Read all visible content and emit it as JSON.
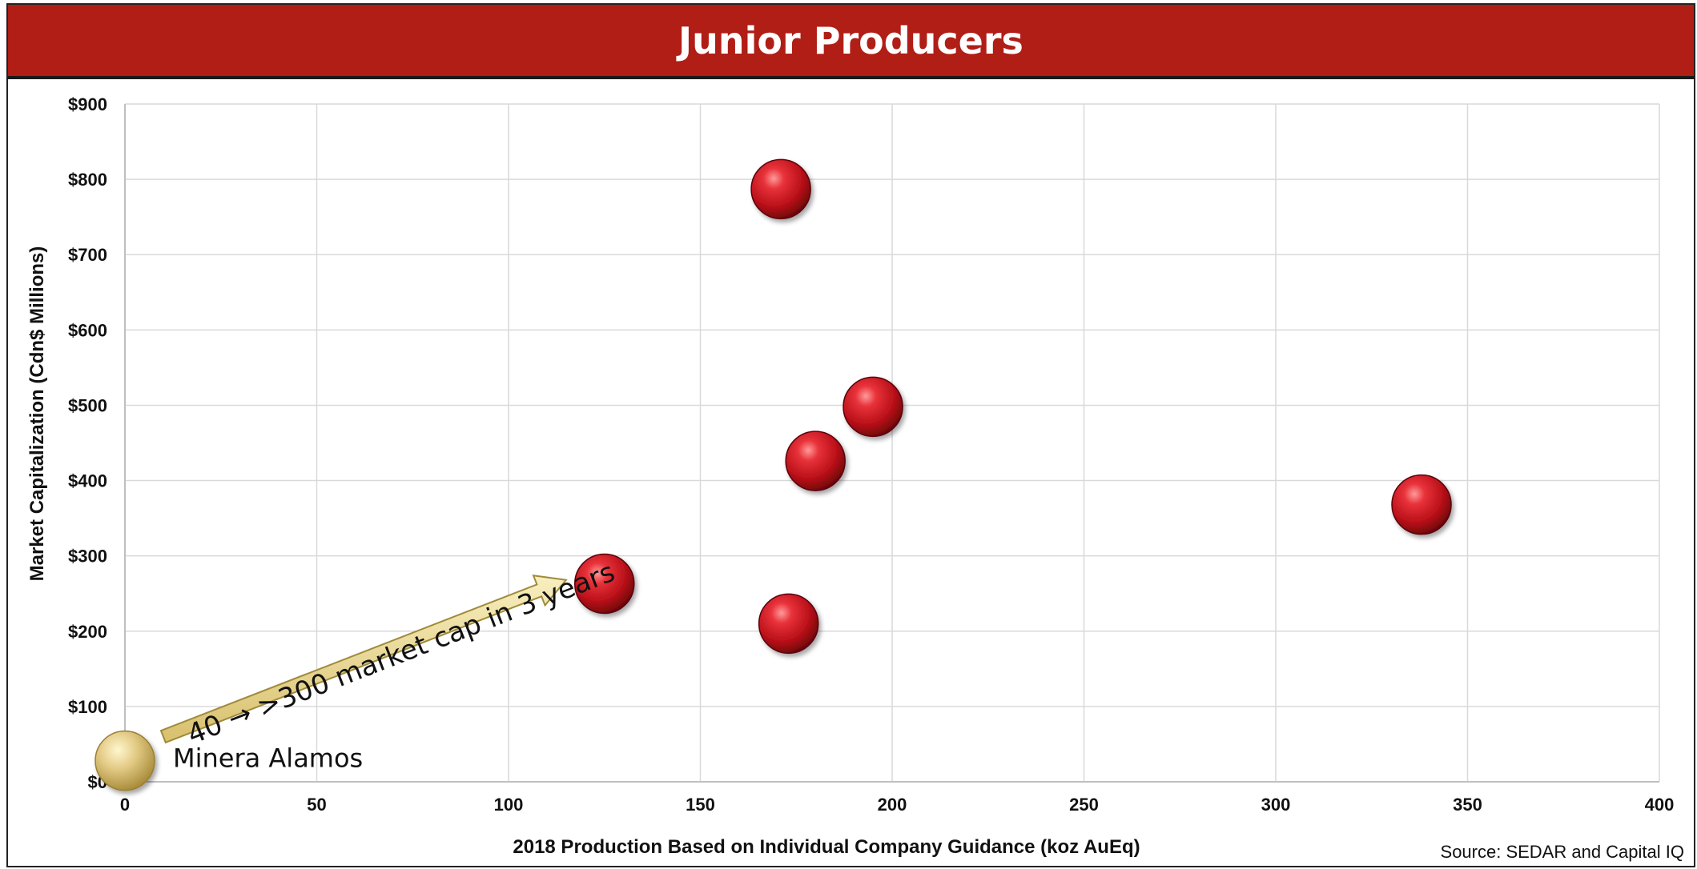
{
  "title": "Junior Producers",
  "source": "Source: SEDAR and Capital IQ",
  "colors": {
    "title_bar": "#b01e16",
    "bubble_red": "#c4121b",
    "bubble_gold": "#d9c07a",
    "arrow_fill": "#e9d98f",
    "grid": "#d9d9d9"
  },
  "chart_data": {
    "type": "scatter",
    "title": "Junior Producers",
    "xlabel": "2018 Production Based on Individual Company Guidance (koz AuEq)",
    "ylabel": "Market Capitalization (Cdn$ Millions)",
    "xlim": [
      0,
      400
    ],
    "ylim": [
      0,
      900
    ],
    "x_ticks": [
      "0",
      "50",
      "100",
      "150",
      "200",
      "250",
      "300",
      "350",
      "400"
    ],
    "y_ticks": [
      "$0",
      "$100",
      "$200",
      "$300",
      "$400",
      "$500",
      "$600",
      "$700",
      "$800",
      "$900"
    ],
    "grid": true,
    "series": [
      {
        "color": "#c4121b",
        "points": [
          {
            "x": 171,
            "y": 787
          },
          {
            "x": 195,
            "y": 498
          },
          {
            "x": 180,
            "y": 426
          },
          {
            "x": 338,
            "y": 368
          },
          {
            "x": 125,
            "y": 263
          },
          {
            "x": 173,
            "y": 210
          }
        ]
      },
      {
        "name": "Minera Alamos",
        "color": "#d9c07a",
        "points": [
          {
            "x": 0,
            "y": 28
          }
        ]
      }
    ],
    "annotations": [
      {
        "text": "Minera Alamos",
        "x": 0,
        "y": 28
      },
      {
        "text": "40 → >300 market cap in 3 years",
        "from": {
          "x": 10,
          "y": 60
        },
        "to": {
          "x": 115,
          "y": 268
        }
      }
    ]
  }
}
